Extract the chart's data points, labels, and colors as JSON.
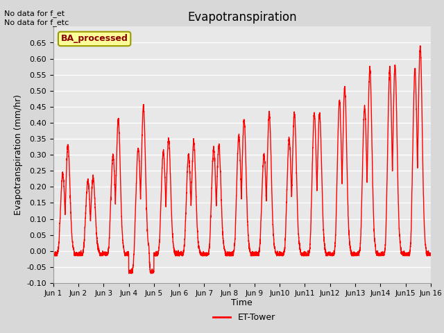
{
  "title": "Evapotranspiration",
  "xlabel": "Time",
  "ylabel": "Evapotranspiration (mm/hr)",
  "ylim": [
    -0.1,
    0.7
  ],
  "yticks": [
    -0.1,
    -0.05,
    0.0,
    0.05,
    0.1,
    0.15,
    0.2,
    0.25,
    0.3,
    0.35,
    0.4,
    0.45,
    0.5,
    0.55,
    0.6,
    0.65
  ],
  "line_color": "#FF0000",
  "line_width": 1.0,
  "legend_label": "ET-Tower",
  "annotation_text": "No data for f_et\nNo data for f_etc",
  "box_label": "BA_processed",
  "box_facecolor": "#FFFF99",
  "box_edgecolor": "#999900",
  "box_text_color": "#8B0000",
  "figure_facecolor": "#D8D8D8",
  "axes_facecolor": "#E8E8E8",
  "grid_color": "#FFFFFF",
  "num_days": 15,
  "daily_peaks": [
    0.33,
    0.23,
    0.41,
    0.45,
    0.35,
    0.34,
    0.33,
    0.41,
    0.43,
    0.43,
    0.43,
    0.51,
    0.57,
    0.58,
    0.64
  ],
  "daily_peaks2": [
    0.24,
    0.22,
    0.3,
    0.32,
    0.31,
    0.3,
    0.32,
    0.36,
    0.3,
    0.35,
    0.43,
    0.47,
    0.45,
    0.57,
    0.57
  ],
  "daily_min": [
    -0.01,
    -0.01,
    -0.01,
    -0.065,
    -0.01,
    -0.01,
    -0.01,
    -0.01,
    -0.01,
    -0.01,
    -0.01,
    -0.01,
    -0.01,
    -0.01,
    -0.01
  ],
  "xtick_labels": [
    "Jun 1",
    "Jun 2",
    "Jun 3",
    "Jun 4",
    "Jun 5",
    "Jun 6",
    "Jun 7",
    "Jun 8",
    "Jun 9",
    "Jun10",
    "Jun11",
    "Jun12",
    "Jun13",
    "Jun14",
    "Jun15",
    "Jun 16"
  ]
}
